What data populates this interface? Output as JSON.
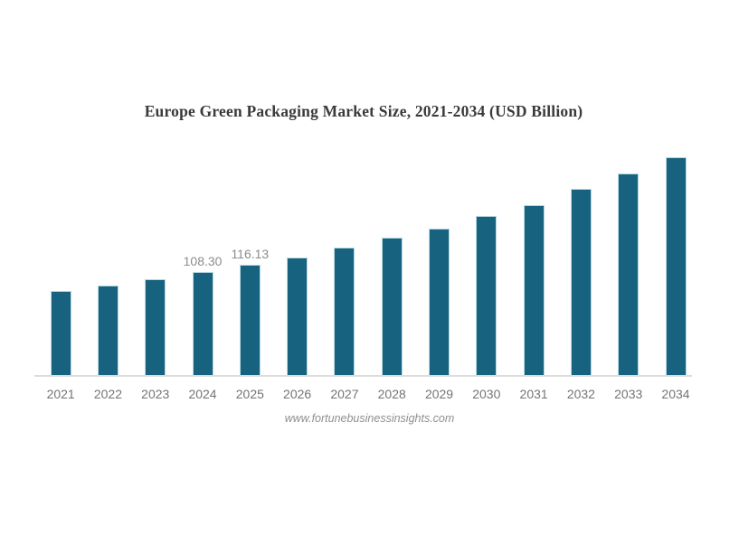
{
  "chart_data": {
    "type": "bar",
    "title": "Europe Green Packaging Market Size, 2021-2034 (USD Billion)",
    "categories": [
      "2021",
      "2022",
      "2023",
      "2024",
      "2025",
      "2026",
      "2027",
      "2028",
      "2029",
      "2030",
      "2031",
      "2032",
      "2033",
      "2034"
    ],
    "values": [
      88.5,
      94.2,
      100.9,
      108.3,
      116.13,
      123.8,
      134.2,
      144.7,
      154.2,
      166.8,
      178.5,
      195.8,
      212.0,
      229.4
    ],
    "data_labels": [
      "",
      "",
      "",
      "108.30",
      "116.13",
      "",
      "",
      "",
      "",
      "",
      "",
      "",
      "",
      ""
    ],
    "xlabel": "",
    "ylabel": "",
    "ylim": [
      0,
      250
    ],
    "grid": false,
    "legend": false,
    "y_axis_visible": false,
    "bar_color": "#17637f",
    "bar_edge_color": "#b9d8e3",
    "axis_line_color": "#dcdcdc",
    "title_color": "#3a3a3a",
    "tick_label_color": "#747474",
    "value_label_color": "#8c8c8c"
  },
  "footer": {
    "website": "www.fortunebusinessinsights.com"
  }
}
